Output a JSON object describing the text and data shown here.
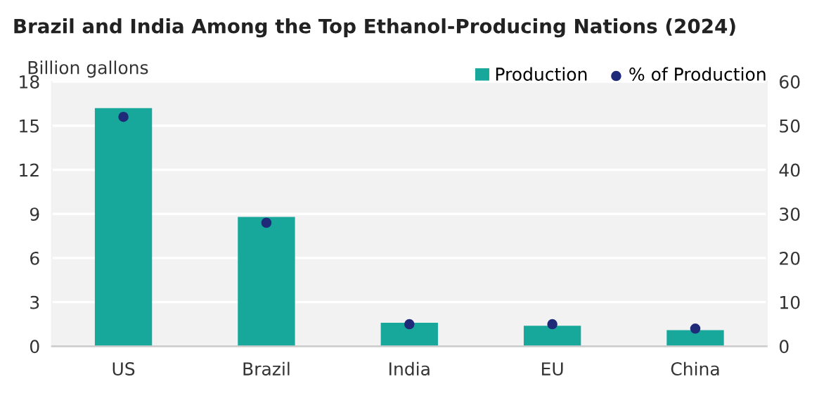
{
  "chart_data": {
    "type": "bar",
    "title": "Brazil and India Among the Top Ethanol-Producing Nations (2024)",
    "ylabel": "Billion gallons",
    "categories": [
      "US",
      "Brazil",
      "India",
      "EU",
      "China"
    ],
    "series": [
      {
        "name": "Production",
        "color": "#17a89b",
        "values": [
          16.2,
          8.8,
          1.6,
          1.4,
          1.1
        ]
      },
      {
        "name": "% of Production",
        "type": "scatter",
        "axis": "y2",
        "color": "#1f2a78",
        "values": [
          52,
          28,
          5,
          5,
          4
        ]
      }
    ],
    "ylim": [
      0,
      18
    ],
    "yticks": [
      0,
      3,
      6,
      9,
      12,
      15,
      18
    ],
    "y2lim": [
      0,
      60
    ],
    "y2ticks": [
      0,
      10,
      20,
      30,
      40,
      50,
      60
    ],
    "grid": "y",
    "legend": "top right",
    "marker": "circle"
  }
}
